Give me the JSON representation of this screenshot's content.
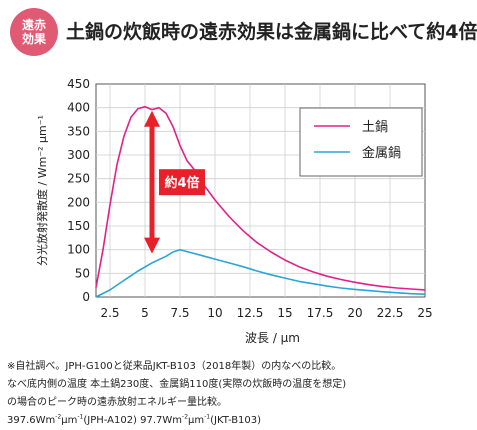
{
  "header": {
    "badge_line1": "遠赤",
    "badge_line2": "効果",
    "title": "土鍋の炊飯時の遠赤効果は金属鍋に比べて約4倍",
    "badge_color": "#e05a73"
  },
  "chart_data": {
    "type": "line",
    "xlabel": "波長 / μm",
    "ylabel": "分光放射発散度 / Wm⁻² μm⁻¹",
    "xlim": [
      1.5,
      25
    ],
    "ylim": [
      0,
      450
    ],
    "xticks": [
      2.5,
      5,
      7.5,
      10,
      12.5,
      15,
      17.5,
      20,
      22.5,
      25
    ],
    "xtick_labels": [
      "2.5",
      "5",
      "7.5",
      "10",
      "12.5",
      "15",
      "17.5",
      "20",
      "22.5",
      "25"
    ],
    "yticks": [
      0,
      50,
      100,
      150,
      200,
      250,
      300,
      350,
      400,
      450
    ],
    "legend_position": "top-right",
    "annotation": "約4倍",
    "annotation_color": "#e8202a",
    "series": [
      {
        "name": "土鍋",
        "color": "#e0218a",
        "x": [
          1.5,
          2,
          2.5,
          3,
          3.5,
          4,
          4.5,
          5,
          5.5,
          6,
          6.5,
          7,
          7.5,
          8,
          8.5,
          9,
          9.5,
          10,
          11,
          12,
          13,
          14,
          15,
          16,
          17,
          18,
          19,
          20,
          21,
          22,
          23,
          24,
          25
        ],
        "y": [
          20,
          100,
          195,
          280,
          340,
          380,
          398,
          402,
          396,
          400,
          388,
          360,
          320,
          288,
          270,
          245,
          225,
          205,
          170,
          140,
          115,
          95,
          78,
          64,
          53,
          44,
          37,
          31,
          26,
          22,
          19,
          17,
          15
        ]
      },
      {
        "name": "金属鍋",
        "color": "#2aa5d8",
        "x": [
          1.5,
          2.5,
          3.5,
          4.5,
          5.5,
          6.5,
          7,
          7.5,
          8,
          9,
          10,
          11,
          12,
          13,
          14,
          15,
          16,
          17,
          18,
          19,
          20,
          22,
          24,
          25
        ],
        "y": [
          0,
          15,
          35,
          55,
          72,
          86,
          95,
          100,
          96,
          88,
          80,
          72,
          64,
          55,
          47,
          40,
          33,
          28,
          23,
          19,
          16,
          11,
          7,
          6
        ]
      }
    ]
  },
  "notes": {
    "line1": "※自社調べ。JPH-G100と従来品JKT-B103（2018年製）の内なべの比較。",
    "line2": "なべ底内側の温度 本土鍋230度、金属鍋110度(実際の炊飯時の温度を想定)",
    "line3": "の場合のピーク時の遠赤放射エネルギー量比較。",
    "line4_a": "397.6Wm",
    "line4_b": "-2",
    "line4_c": "μm",
    "line4_d": "-1",
    "line4_e": "(JPH-A102) 97.7Wm",
    "line4_f": "-2",
    "line4_g": "μm",
    "line4_h": "-1",
    "line4_i": "(JKT-B103)"
  }
}
